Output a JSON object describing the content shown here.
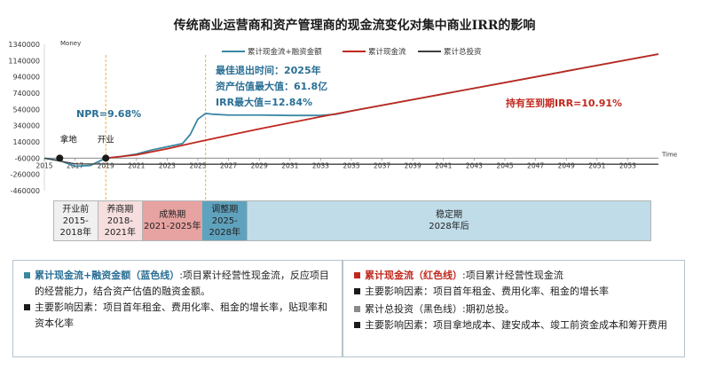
{
  "title": "传统商业运营商和资产管理商的现金流变化对集中商业IRR的影响",
  "colors": {
    "blue": "#3a87a3",
    "red": "#c0281e",
    "black": "#3f3f3f",
    "annotation_blue": "#2a6f95",
    "annotation_red": "#c0281e",
    "guide": "#e8b33c",
    "milestone": "#1a1a1a"
  },
  "chart_data": {
    "type": "line",
    "title": "传统商业运营商和资产管理商的现金流变化对集中商业IRR的影响",
    "ylabel": "Money",
    "xlabel": "Time",
    "ylim": [
      -460000,
      1340000
    ],
    "yticks": [
      1340000,
      1140000,
      940000,
      740000,
      540000,
      340000,
      140000,
      -60000,
      -260000,
      -460000
    ],
    "yticks_labels": [
      "1340000",
      "1140000",
      "940000",
      "740000",
      "540000",
      "340000",
      "140000",
      "-60000",
      "-260000",
      "-460000"
    ],
    "xlim": [
      2015,
      2055
    ],
    "xticks": [
      2015,
      2017,
      2019,
      2021,
      2023,
      2025,
      2027,
      2029,
      2031,
      2033,
      2035,
      2037,
      2039,
      2041,
      2043,
      2045,
      2047,
      2049,
      2051,
      2053
    ],
    "xticks_labels": [
      "2015",
      "2017",
      "2019",
      "2021",
      "2023",
      "2025",
      "2027",
      "2029",
      "2031",
      "2033",
      "2035",
      "2037",
      "2039",
      "2041",
      "2043",
      "2045",
      "2047",
      "2049",
      "2051",
      "2053"
    ],
    "grid": false,
    "legend_position": "top-right",
    "series": [
      {
        "name": "累计现金流+融资金额",
        "color": "#3a87a3",
        "x": [
          2015,
          2016,
          2017,
          2018,
          2019,
          2020,
          2021,
          2022,
          2023,
          2024,
          2024.5,
          2025,
          2025.5,
          2026,
          2027,
          2029,
          2031,
          2033,
          2034,
          2035,
          2040,
          2045,
          2050,
          2055
        ],
        "y": [
          -60000,
          -90000,
          -160000,
          -150000,
          -60000,
          -40000,
          -10000,
          40000,
          80000,
          120000,
          230000,
          420000,
          490000,
          480000,
          470000,
          470000,
          465000,
          465000,
          480000,
          520000,
          695000,
          870000,
          1045000,
          1220000
        ]
      },
      {
        "name": "累计现金流",
        "color": "#c0281e",
        "x": [
          2019,
          2021,
          2023,
          2025,
          2027,
          2029,
          2031,
          2033,
          2035,
          2040,
          2045,
          2050,
          2055
        ],
        "y": [
          -60000,
          -20000,
          55000,
          140000,
          220000,
          300000,
          375000,
          450000,
          520000,
          695000,
          870000,
          1045000,
          1220000
        ]
      },
      {
        "name": "累计总投资",
        "color": "#3f3f3f",
        "x": [
          2015,
          2017,
          2020,
          2023,
          2025,
          2030,
          2035,
          2040,
          2045,
          2050,
          2055
        ],
        "y": [
          -60000,
          -130000,
          -135000,
          -135000,
          -135000,
          -135000,
          -135000,
          -135000,
          -135000,
          -135000,
          -135000
        ]
      }
    ],
    "annotations": [
      {
        "text": "NPR=9.68%",
        "color": "blue"
      },
      {
        "text": "最佳退出时间：2025年",
        "color": "blue"
      },
      {
        "text": "资产估值最大值：61.8亿",
        "color": "blue"
      },
      {
        "text": "IRR最大值=12.84%",
        "color": "blue"
      },
      {
        "text": "持有至到期IRR=10.91%",
        "color": "red"
      }
    ],
    "milestones": [
      {
        "label": "拿地",
        "x": 2016,
        "y": -60000
      },
      {
        "label": "开业",
        "x": 2019,
        "y": -60000
      }
    ],
    "guides": [
      2019,
      2025.5
    ]
  },
  "phases": [
    {
      "name": "开业前",
      "years": "2015-2018年",
      "color": "#f0f0f0",
      "from": 2015,
      "to": 2018
    },
    {
      "name": "养商期",
      "years": "2018-2021年",
      "color": "#f6dede",
      "from": 2018,
      "to": 2021
    },
    {
      "name": "成熟期",
      "years": "2021-2025年",
      "color": "#e6a3a1",
      "from": 2021,
      "to": 2025
    },
    {
      "name": "调整期",
      "years": "2025-2028年",
      "color": "#5fa2bd",
      "from": 2025,
      "to": 2028
    },
    {
      "name": "稳定期",
      "years": "2028年后",
      "color": "#bfdce8",
      "from": 2028,
      "to": 2055
    }
  ],
  "legend_left": {
    "item1_title": "累计现金流+融资金额（蓝色线）",
    "item1_text": ":项目累计经营性现金流，反应项目的经营能力，结合资产估值的融资金额。",
    "item2_text": "主要影响因素：项目首年租金、费用化率、租金的增长率，贴现率和资本化率"
  },
  "legend_right": {
    "item1_title": "累计现金流（红色线）",
    "item1_text": ":项目累计经营性现金流",
    "item2_text": "主要影响因素：项目首年租金、费用化率、租金的增长率",
    "item3_text": "累计总投资（黑色线）:期初总投。",
    "item4_text": "主要影响因素：项目拿地成本、建安成本、竣工前资金成本和筹开费用"
  }
}
